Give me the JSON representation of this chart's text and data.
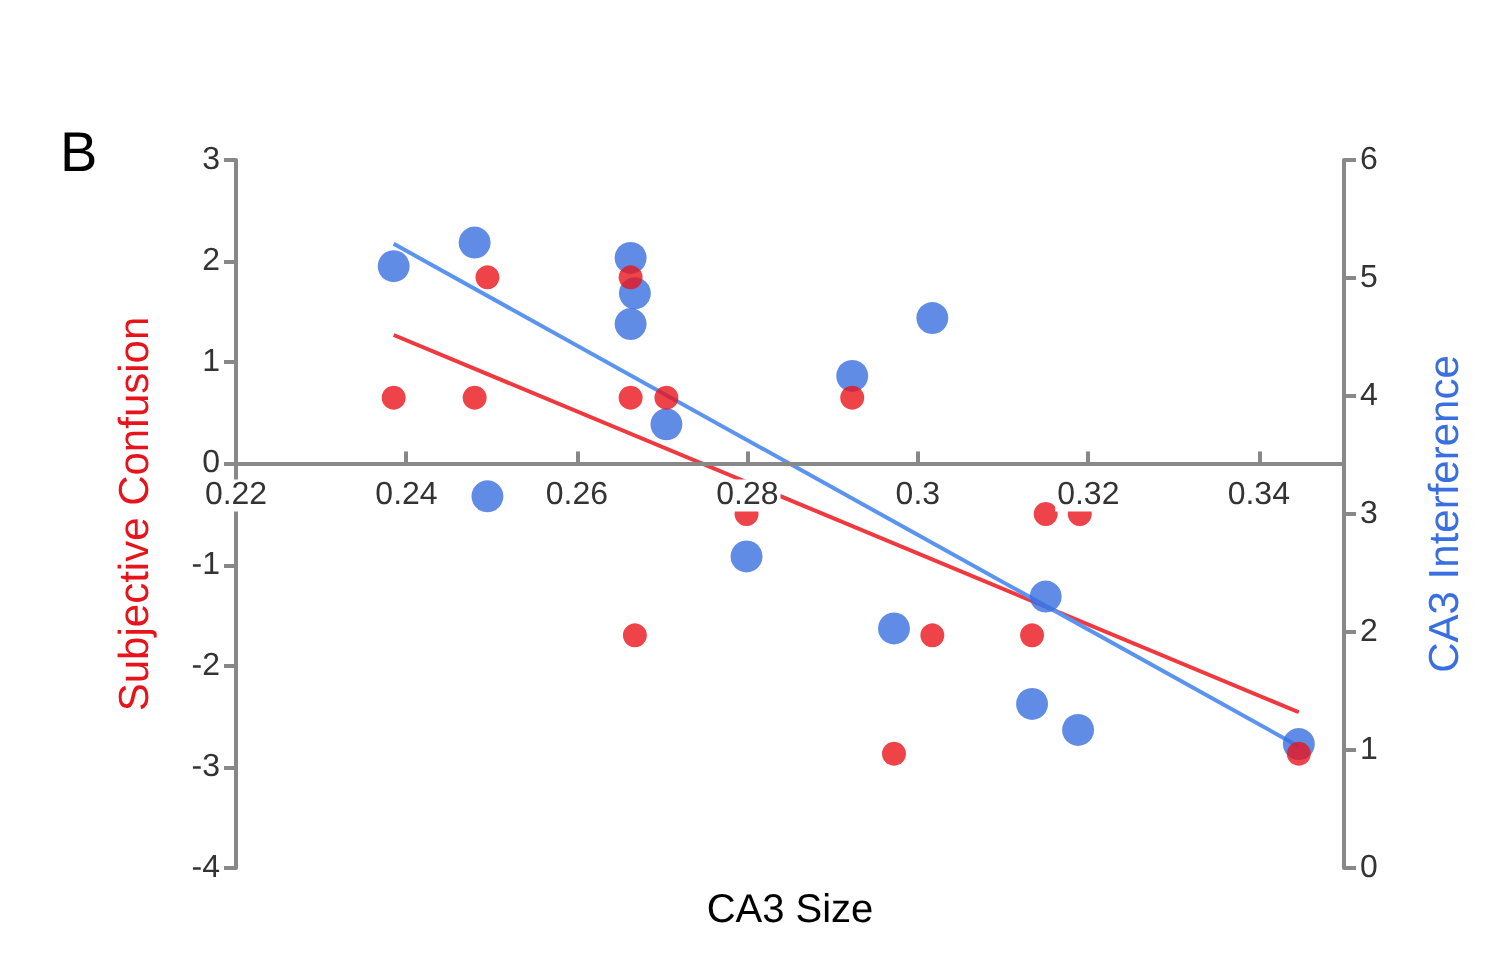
{
  "chart_data": {
    "type": "scatter",
    "ylabel": "Subjective Confusion",
    "y2label": "CA3 Interference",
    "annotations": [
      "B",
      "CA3 Size"
    ],
    "xlim": [
      0.22,
      0.35
    ],
    "xticks": [
      0.22,
      0.24,
      0.26,
      0.28,
      0.3,
      0.32,
      0.34
    ],
    "ylim": [
      -4,
      3
    ],
    "yticks": [
      -4,
      -3,
      -2,
      -1,
      0,
      1,
      2,
      3
    ],
    "y2lim": [
      0,
      6
    ],
    "y2ticks": [
      0,
      1,
      2,
      3,
      4,
      5,
      6
    ],
    "grid": false,
    "marker": "circle",
    "series": [
      {
        "type": "line",
        "color": "#f0393e",
        "marker": "none",
        "x": [
          0.2385,
          0.3447
        ],
        "values": [
          1.27,
          -2.46
        ]
      },
      {
        "type": "line",
        "axis": "y2",
        "color": "#5b93f0",
        "marker": "none",
        "x": [
          0.2385,
          0.3447
        ],
        "values": [
          5.29,
          1.03
        ]
      },
      {
        "axis": "y2",
        "color": "#3a6fe0",
        "x": [
          0.2385,
          0.248,
          0.2495,
          0.2663,
          0.2668,
          0.2663,
          0.2705,
          0.2799,
          0.2923,
          0.3017,
          0.2972,
          0.315,
          0.3134,
          0.3188,
          0.3447
        ],
        "values": [
          5.1,
          5.3,
          3.15,
          5.17,
          4.87,
          4.61,
          3.76,
          2.64,
          4.17,
          4.66,
          2.03,
          2.3,
          1.39,
          1.17,
          1.05
        ]
      },
      {
        "color": "#e8141b",
        "x": [
          0.2385,
          0.248,
          0.2495,
          0.2663,
          0.2663,
          0.2705,
          0.2668,
          0.2799,
          0.2923,
          0.2972,
          0.3017,
          0.3134,
          0.315,
          0.319,
          0.3447
        ],
        "values": [
          0.65,
          0.65,
          1.84,
          1.84,
          0.65,
          0.65,
          -1.7,
          -0.5,
          0.65,
          -2.87,
          -1.7,
          -1.7,
          -0.5,
          -0.5,
          -2.87
        ]
      }
    ]
  }
}
